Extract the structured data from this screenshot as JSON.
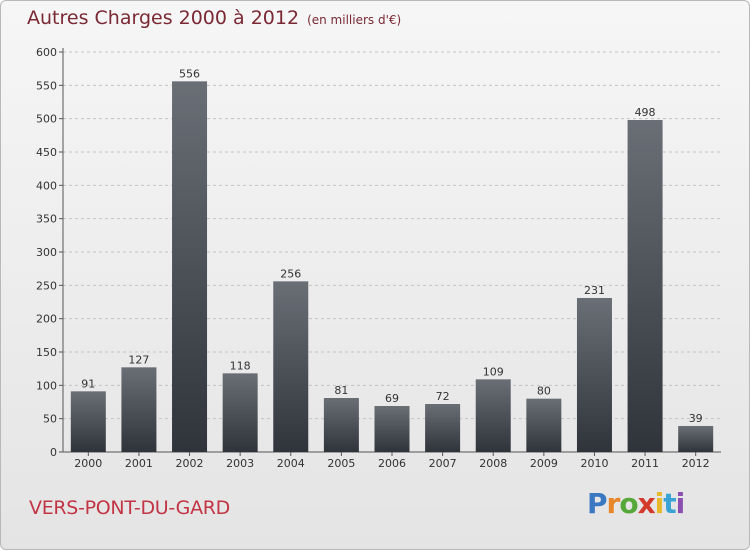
{
  "header": {
    "title": "Autres Charges 2000 à 2012",
    "subtitle": "(en milliers d'€)"
  },
  "footer": {
    "commune": "VERS-PONT-DU-GARD",
    "logo_text": "Proxiti"
  },
  "colors": {
    "title": "#7a2934",
    "commune": "#c13545",
    "bar_top": "#6a6f76",
    "bar_bottom": "#2f343a"
  },
  "chart_data": {
    "type": "bar",
    "title": "Autres Charges 2000 à 2012",
    "xlabel": "",
    "ylabel": "",
    "categories": [
      "2000",
      "2001",
      "2002",
      "2003",
      "2004",
      "2005",
      "2006",
      "2007",
      "2008",
      "2009",
      "2010",
      "2011",
      "2012"
    ],
    "values": [
      91,
      127,
      556,
      118,
      256,
      81,
      69,
      72,
      109,
      80,
      231,
      498,
      39
    ],
    "ylim": [
      0,
      600
    ],
    "yticks": [
      0,
      50,
      100,
      150,
      200,
      250,
      300,
      350,
      400,
      450,
      500,
      550,
      600
    ],
    "grid": "horizontal-dashed"
  }
}
